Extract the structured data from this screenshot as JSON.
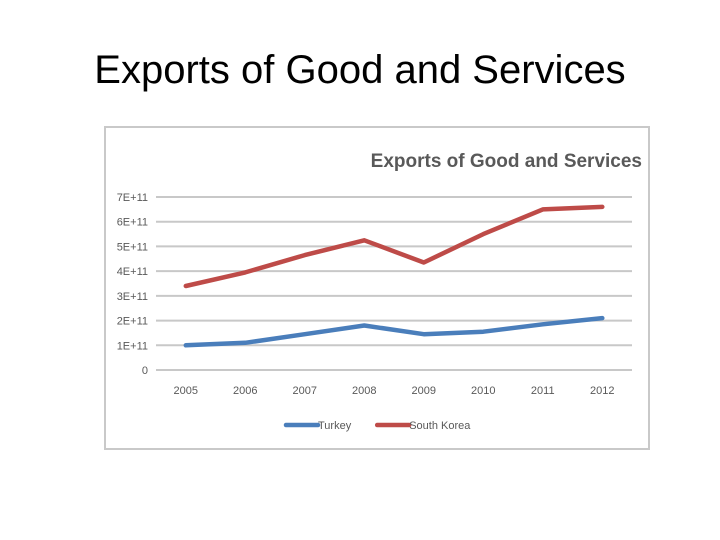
{
  "slide": {
    "title": "Exports of Good and Services"
  },
  "chart_data": {
    "type": "line",
    "title": "Exports of Good and Services",
    "xlabel": "",
    "ylabel": "",
    "categories": [
      "2005",
      "2006",
      "2007",
      "2008",
      "2009",
      "2010",
      "2011",
      "2012"
    ],
    "ylim": [
      0,
      700000000000
    ],
    "yticks": [
      0,
      100000000000,
      200000000000,
      300000000000,
      400000000000,
      500000000000,
      600000000000,
      700000000000
    ],
    "ytick_labels": [
      "0",
      "1E+11",
      "2E+11",
      "3E+11",
      "4E+11",
      "5E+11",
      "6E+11",
      "7E+11"
    ],
    "grid": true,
    "legend_position": "bottom",
    "series": [
      {
        "name": "Turkey",
        "color": "#4a7ebb",
        "values": [
          100000000000,
          110000000000,
          145000000000,
          180000000000,
          145000000000,
          155000000000,
          185000000000,
          210000000000
        ]
      },
      {
        "name": "South Korea",
        "color": "#be4b48",
        "values": [
          340000000000,
          395000000000,
          465000000000,
          525000000000,
          435000000000,
          550000000000,
          650000000000,
          660000000000
        ]
      }
    ]
  }
}
